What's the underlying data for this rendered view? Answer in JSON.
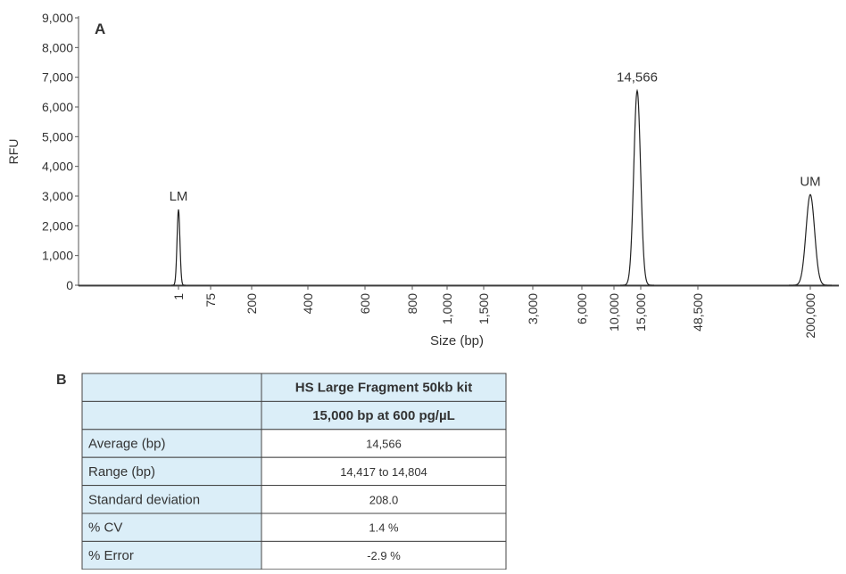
{
  "chart_data": {
    "type": "electropherogram",
    "panel_label": "A",
    "ylabel": "RFU",
    "xlabel": "Size (bp)",
    "ylim": [
      0,
      9000
    ],
    "yticks": [
      {
        "value": 0,
        "label": "0"
      },
      {
        "value": 1000,
        "label": "1,000"
      },
      {
        "value": 2000,
        "label": "2,000"
      },
      {
        "value": 3000,
        "label": "3,000"
      },
      {
        "value": 4000,
        "label": "4,000"
      },
      {
        "value": 5000,
        "label": "5,000"
      },
      {
        "value": 6000,
        "label": "6,000"
      },
      {
        "value": 7000,
        "label": "7,000"
      },
      {
        "value": 8000,
        "label": "8,000"
      },
      {
        "value": 9000,
        "label": "9,000"
      }
    ],
    "xticks": [
      "1",
      "75",
      "200",
      "400",
      "600",
      "800",
      "1,000",
      "1,500",
      "3,000",
      "6,000",
      "10,000",
      "15,000",
      "48,500",
      "200,000"
    ],
    "peaks": [
      {
        "label": "LM",
        "value": 2550
      },
      {
        "label": "14,566",
        "value": 6550
      },
      {
        "label": "UM",
        "value": 3050
      }
    ],
    "color": "#222222"
  },
  "table": {
    "panel_label": "B",
    "header": [
      "HS Large Fragment 50kb kit",
      "15,000 bp at 600 pg/µL"
    ],
    "rows": [
      [
        "Average (bp)",
        "14,566"
      ],
      [
        "Range (bp)",
        "14,417 to 14,804"
      ],
      [
        "Standard deviation",
        "208.0"
      ],
      [
        "% CV",
        "1.4 %"
      ],
      [
        "% Error",
        "-2.9 %"
      ]
    ]
  }
}
